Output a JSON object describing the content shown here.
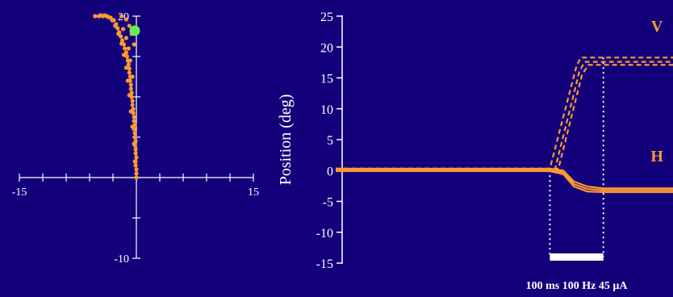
{
  "colors": {
    "background": "#13007b",
    "axis": "#ffffff",
    "trace": "#ff9933",
    "marker": "#66ee55",
    "stimulus_bar": "#ffffff"
  },
  "chart_data": [
    {
      "type": "scatter",
      "title": "",
      "xlabel": "",
      "ylabel": "",
      "xlim": [
        -15,
        15
      ],
      "ylim": [
        -10,
        20
      ],
      "xticks": [
        -15,
        -12,
        -9,
        -6,
        -3,
        0,
        3,
        6,
        9,
        12,
        15
      ],
      "yticks": [
        -10,
        -5,
        0,
        5,
        10,
        15,
        20
      ],
      "x_tick_labels": [
        {
          "value": -15,
          "text": "-15"
        },
        {
          "value": 15,
          "text": "15"
        }
      ],
      "y_tick_labels": [
        {
          "value": 20,
          "text": "20"
        },
        {
          "value": -10,
          "text": "-10"
        }
      ],
      "grid": false,
      "marker_point": {
        "x": 0,
        "y": 18.2
      },
      "series": [
        {
          "points": [
            [
              0,
              0
            ],
            [
              0,
              0.5
            ],
            [
              0,
              1
            ],
            [
              -0.1,
              1.5
            ],
            [
              -0.1,
              2
            ],
            [
              0,
              2.5
            ],
            [
              -0.1,
              3
            ],
            [
              -0.1,
              3.5
            ],
            [
              -0.2,
              4
            ],
            [
              -0.1,
              4.5
            ],
            [
              -0.2,
              5
            ],
            [
              -0.2,
              5.5
            ],
            [
              -0.3,
              6
            ],
            [
              -0.2,
              6.5
            ],
            [
              -0.3,
              7
            ],
            [
              -0.3,
              7.5
            ],
            [
              -0.4,
              8
            ],
            [
              -0.4,
              8.5
            ],
            [
              -0.5,
              9
            ],
            [
              -0.5,
              9.5
            ],
            [
              -0.6,
              10
            ],
            [
              -0.6,
              10.5
            ],
            [
              -0.7,
              11
            ],
            [
              -0.7,
              11.5
            ],
            [
              -0.8,
              12
            ],
            [
              -0.8,
              12.5
            ],
            [
              -0.9,
              13
            ],
            [
              -0.9,
              13.5
            ],
            [
              -1.0,
              14
            ],
            [
              -1.1,
              14.5
            ],
            [
              -1.2,
              15
            ],
            [
              -1.3,
              15.5
            ],
            [
              -1.5,
              16
            ],
            [
              -1.6,
              16.5
            ],
            [
              -1.8,
              17
            ],
            [
              -2.0,
              17.5
            ],
            [
              -2.2,
              18
            ],
            [
              -2.4,
              18.5
            ],
            [
              -2.6,
              19
            ],
            [
              -2.9,
              19.5
            ],
            [
              -3.3,
              19.8
            ],
            [
              -3.8,
              20
            ],
            [
              -4.3,
              20
            ],
            [
              -4.8,
              20
            ],
            [
              -5.3,
              20
            ],
            [
              -0.2,
              2
            ],
            [
              -0.3,
              4.2
            ],
            [
              -0.5,
              6.3
            ],
            [
              -0.7,
              8.2
            ],
            [
              -0.9,
              10.2
            ],
            [
              -1.1,
              12
            ],
            [
              -1.3,
              13.6
            ],
            [
              -1.6,
              15.2
            ],
            [
              -1.9,
              16.6
            ],
            [
              -2.3,
              17.8
            ],
            [
              -2.7,
              18.8
            ],
            [
              -3.1,
              19.5
            ],
            [
              -3.6,
              19.9
            ],
            [
              -4.1,
              20.1
            ],
            [
              -4.6,
              20.1
            ],
            [
              -0.5,
              12.5
            ],
            [
              -0.8,
              14.5
            ],
            [
              -1.0,
              16
            ],
            [
              -1.3,
              17.3
            ],
            [
              -1.7,
              18.4
            ],
            [
              -0.3,
              16.5
            ],
            [
              -0.6,
              17.8
            ],
            [
              -0.9,
              18.8
            ],
            [
              -1.3,
              19.6
            ],
            [
              -1.9,
              20
            ]
          ]
        }
      ]
    },
    {
      "type": "line",
      "title": "",
      "xlabel": "",
      "ylabel": "Position (deg)",
      "ylim": [
        -15,
        25
      ],
      "yticks": [
        25,
        20,
        15,
        10,
        5,
        0,
        -5,
        -10,
        -15
      ],
      "ytick_labels": [
        "25",
        "20",
        "15",
        "10",
        "5",
        "0",
        "-5",
        "-10",
        "-15"
      ],
      "xlim": [
        -0.4,
        0.23
      ],
      "grid": false,
      "time_unit": "s",
      "stimulus": {
        "start": 0,
        "end": 0.1,
        "label": "100 ms 100 Hz 45 µA"
      },
      "series": [
        {
          "name": "V",
          "style": "dashed",
          "points": [
            [
              -0.4,
              0.3
            ],
            [
              0,
              0.3
            ],
            [
              0.05,
              17
            ],
            [
              0.058,
              18.3
            ],
            [
              0.23,
              18.3
            ]
          ]
        },
        {
          "name": "V",
          "style": "dashed",
          "points": [
            [
              -0.4,
              0.3
            ],
            [
              0.01,
              0.3
            ],
            [
              0.055,
              16
            ],
            [
              0.065,
              17.6
            ],
            [
              0.23,
              17.6
            ]
          ]
        },
        {
          "name": "V",
          "style": "dashed",
          "points": [
            [
              -0.4,
              0.3
            ],
            [
              0.016,
              0.3
            ],
            [
              0.06,
              15.5
            ],
            [
              0.072,
              17.1
            ],
            [
              0.23,
              17.1
            ]
          ]
        },
        {
          "name": "H",
          "style": "solid",
          "points": [
            [
              -0.4,
              0.3
            ],
            [
              0,
              0.3
            ],
            [
              0.025,
              0
            ],
            [
              0.045,
              -1.8
            ],
            [
              0.07,
              -2.6
            ],
            [
              0.1,
              -2.9
            ],
            [
              0.23,
              -2.9
            ]
          ]
        },
        {
          "name": "H",
          "style": "solid",
          "points": [
            [
              -0.4,
              0.1
            ],
            [
              0,
              0.1
            ],
            [
              0.025,
              -0.3
            ],
            [
              0.045,
              -2.2
            ],
            [
              0.07,
              -3.0
            ],
            [
              0.1,
              -3.2
            ],
            [
              0.23,
              -3.2
            ]
          ]
        },
        {
          "name": "H",
          "style": "solid",
          "points": [
            [
              -0.4,
              -0.1
            ],
            [
              0,
              -0.1
            ],
            [
              0.025,
              -0.6
            ],
            [
              0.045,
              -2.6
            ],
            [
              0.07,
              -3.4
            ],
            [
              0.1,
              -3.5
            ],
            [
              0.23,
              -3.5
            ]
          ]
        }
      ],
      "trace_labels": [
        {
          "text": "V",
          "x": 0.2,
          "y": 22.5
        },
        {
          "text": "H",
          "x": 0.2,
          "y": 1.5
        }
      ]
    }
  ]
}
